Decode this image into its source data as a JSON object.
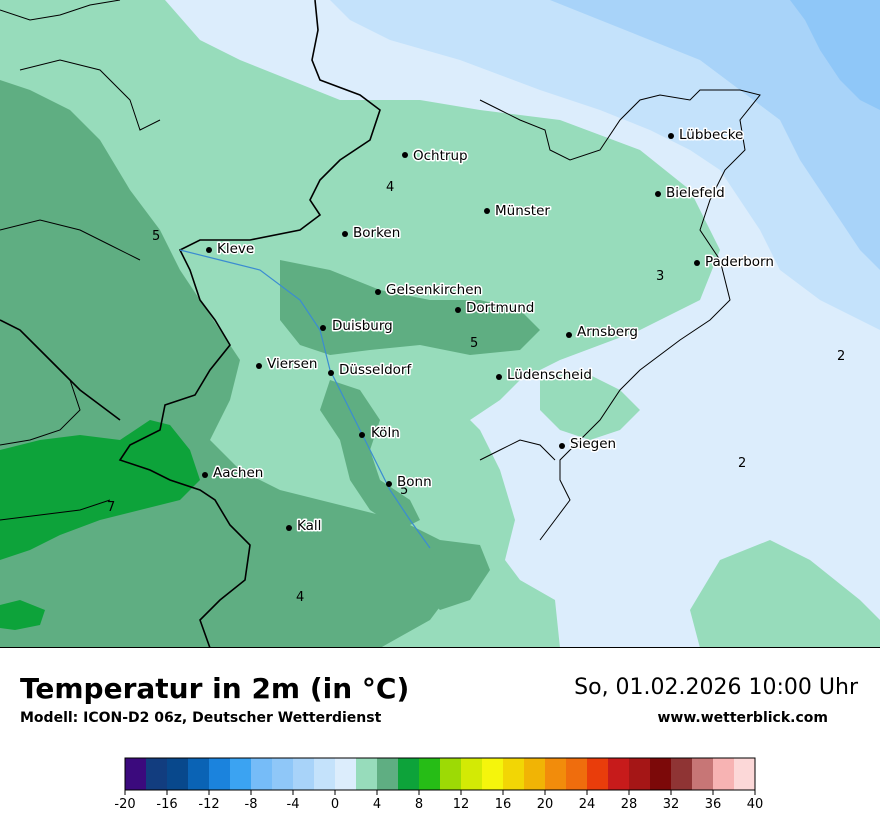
{
  "title": "Temperatur in 2m (in °C)",
  "subtitle": "Modell: ICON-D2 06z, Deutscher Wetterdienst",
  "datetime": "So, 01.02.2026 10:00 Uhr",
  "website": "www.wetterblick.com",
  "cities": [
    {
      "id": "ochtrup",
      "name": "Ochtrup"
    },
    {
      "id": "muenster",
      "name": "Münster"
    },
    {
      "id": "luebbecke",
      "name": "Lübbecke"
    },
    {
      "id": "bielefeld",
      "name": "Bielefeld"
    },
    {
      "id": "borken",
      "name": "Borken"
    },
    {
      "id": "kleve",
      "name": "Kleve"
    },
    {
      "id": "paderborn",
      "name": "Paderborn"
    },
    {
      "id": "gelsenkirchen",
      "name": "Gelsenkirchen"
    },
    {
      "id": "dortmund",
      "name": "Dortmund"
    },
    {
      "id": "duisburg",
      "name": "Duisburg"
    },
    {
      "id": "arnsberg",
      "name": "Arnsberg"
    },
    {
      "id": "viersen",
      "name": "Viersen"
    },
    {
      "id": "duesseldorf",
      "name": "Düsseldorf"
    },
    {
      "id": "luedenscheid",
      "name": "Lüdenscheid"
    },
    {
      "id": "koeln",
      "name": "Köln"
    },
    {
      "id": "siegen",
      "name": "Siegen"
    },
    {
      "id": "aachen",
      "name": "Aachen"
    },
    {
      "id": "bonn",
      "name": "Bonn"
    },
    {
      "id": "kall",
      "name": "Kall"
    }
  ],
  "isoline_labels": [
    "4",
    "5",
    "3",
    "5",
    "2",
    "2",
    "7",
    "5",
    "4"
  ],
  "legend": {
    "colors": [
      "#3b0a7d",
      "#123d7f",
      "#08488c",
      "#0a63b5",
      "#1b83dd",
      "#3ba3f2",
      "#76bcf8",
      "#8fc7f8",
      "#a8d3f9",
      "#c4e2fb",
      "#dcedfc",
      "#97dcbb",
      "#5fae82",
      "#0da33a",
      "#26bd16",
      "#9dda05",
      "#d3ea05",
      "#f5f50c",
      "#f2d605",
      "#f1b405",
      "#f28c0b",
      "#ef6d0d",
      "#e93d0b",
      "#c71b1b",
      "#a51616",
      "#7c0909",
      "#8f3434",
      "#c77676",
      "#f7b3b3",
      "#fcd8d8"
    ],
    "ticks": [
      "-20",
      "-16",
      "-12",
      "-8",
      "-4",
      "0",
      "4",
      "8",
      "12",
      "16",
      "20",
      "24",
      "28",
      "32",
      "36",
      "40"
    ]
  }
}
